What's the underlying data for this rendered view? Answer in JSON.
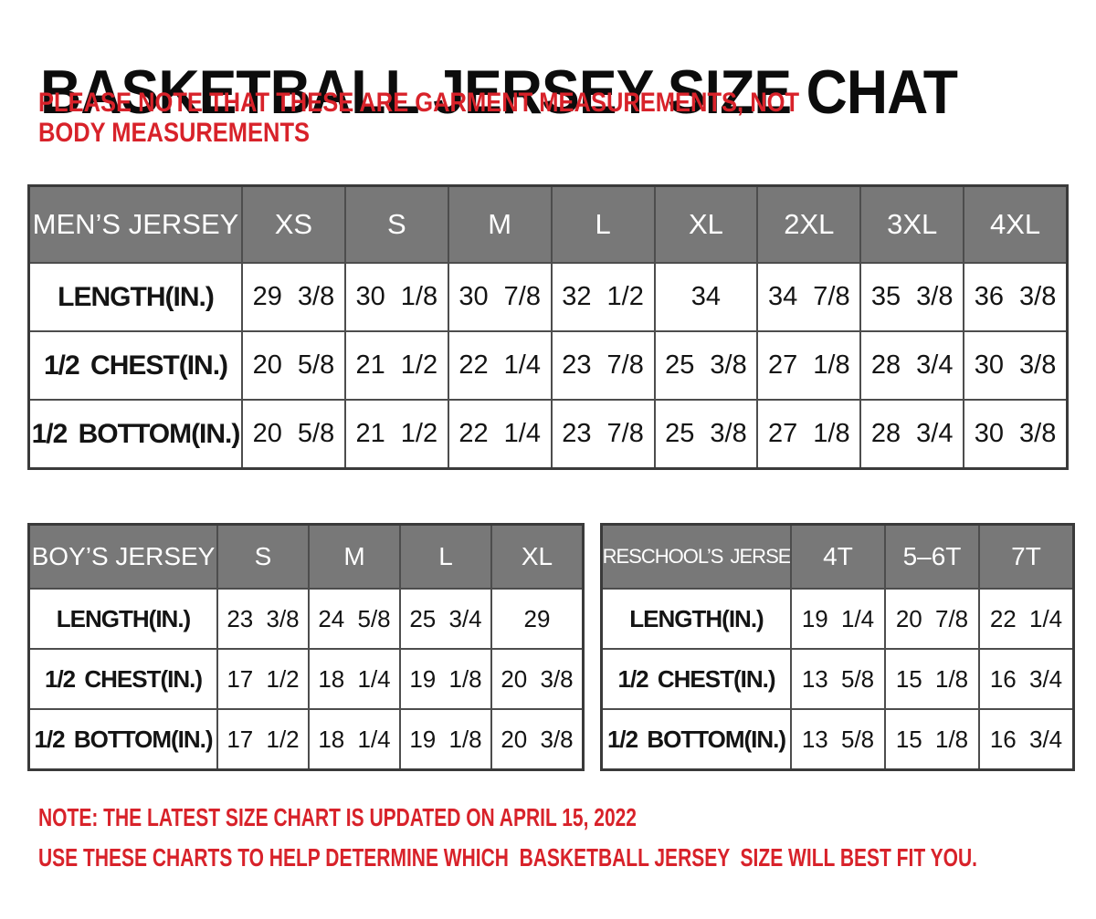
{
  "page": {
    "title": "BASKETBALL JERSEY SIZE CHAT",
    "subtitle": "PLEASE NOTE THAT THESE ARE GARMENT MEASUREMENTS, NOT BODY MEASUREMENTS",
    "note1": "NOTE: THE LATEST SIZE CHART IS UPDATED ON APRIL 15, 2022",
    "note2": "USE THESE CHARTS TO HELP DETERMINE WHICH  BASKETBALL JERSEY  SIZE WILL BEST FIT YOU."
  },
  "colors": {
    "accent_red": "#d8222a",
    "header_gray": "#787878",
    "border_dark": "#3a3a3a",
    "grid_line": "#4d4d4d",
    "header_text": "#ffffff",
    "body_text": "#141414"
  },
  "tables": {
    "mens": {
      "name_header": "MEN’S JERSEY",
      "columns": [
        "XS",
        "S",
        "M",
        "L",
        "XL",
        "2XL",
        "3XL",
        "4XL"
      ],
      "rows": [
        {
          "label": "LENGTH(IN.)",
          "values": [
            "29 3/8",
            "30 1/8",
            "30 7/8",
            "32 1/2",
            "34",
            "34 7/8",
            "35 3/8",
            "36 3/8"
          ]
        },
        {
          "label": "1/2 CHEST(IN.)",
          "values": [
            "20 5/8",
            "21 1/2",
            "22 1/4",
            "23 7/8",
            "25 3/8",
            "27 1/8",
            "28 3/4",
            "30 3/8"
          ]
        },
        {
          "label": "1/2 BOTTOM(IN.)",
          "values": [
            "20 5/8",
            "21 1/2",
            "22 1/4",
            "23 7/8",
            "25 3/8",
            "27 1/8",
            "28 3/4",
            "30 3/8"
          ]
        }
      ]
    },
    "boys": {
      "name_header": "BOY’S JERSEY",
      "columns": [
        "S",
        "M",
        "L",
        "XL"
      ],
      "rows": [
        {
          "label": "LENGTH(IN.)",
          "values": [
            "23 3/8",
            "24 5/8",
            "25 3/4",
            "29"
          ]
        },
        {
          "label": "1/2 CHEST(IN.)",
          "values": [
            "17 1/2",
            "18 1/4",
            "19 1/8",
            "20 3/8"
          ]
        },
        {
          "label": "1/2 BOTTOM(IN.)",
          "values": [
            "17 1/2",
            "18 1/4",
            "19 1/8",
            "20 3/8"
          ]
        }
      ]
    },
    "preschool": {
      "name_header": "PRESCHOOL’S JERSEY",
      "columns": [
        "4T",
        "5–6T",
        "7T"
      ],
      "rows": [
        {
          "label": "LENGTH(IN.)",
          "values": [
            "19 1/4",
            "20 7/8",
            "22 1/4"
          ]
        },
        {
          "label": "1/2 CHEST(IN.)",
          "values": [
            "13 5/8",
            "15 1/8",
            "16 3/4"
          ]
        },
        {
          "label": "1/2 BOTTOM(IN.)",
          "values": [
            "13 5/8",
            "15 1/8",
            "16 3/4"
          ]
        }
      ]
    }
  }
}
